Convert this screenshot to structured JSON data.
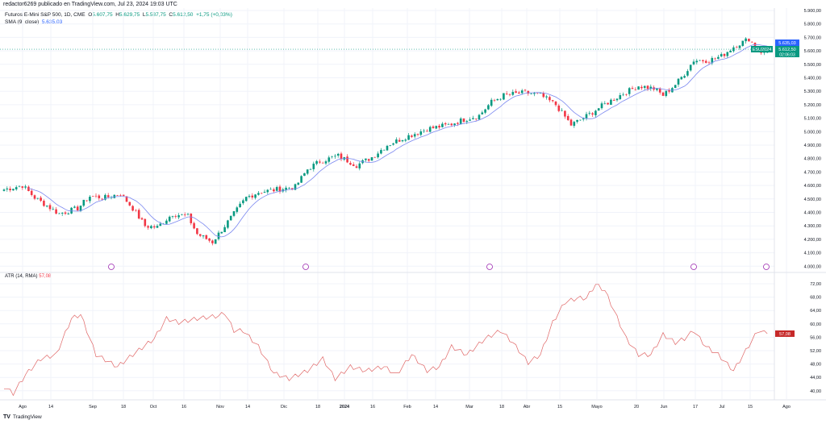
{
  "credit": "redactor6269 publicado en TradingView.com, Jul 23, 2024 19:03 UTC",
  "legend": {
    "symbol": "Futuros E-Mini S&P 500, 1D, CME",
    "o_label": "O",
    "o": "5.607,75",
    "h_label": "H",
    "h": "5.629,75",
    "l_label": "L",
    "l": "5.587,75",
    "c_label": "C",
    "c": "5.612,50",
    "change": "+1,75 (+0,03%)",
    "sma_label": "SMA (9, close)",
    "sma_value": "5.635,03"
  },
  "atr": {
    "label": "ATR (14, RMA)",
    "value": "57,08"
  },
  "price_axis": {
    "ticks": [
      "5.900,00",
      "5.800,00",
      "5.700,00",
      "5.600,00",
      "5.500,00",
      "5.400,00",
      "5.300,00",
      "5.200,00",
      "5.100,00",
      "5.000,00",
      "4.900,00",
      "4.800,00",
      "4.700,00",
      "4.600,00",
      "4.500,00",
      "4.400,00",
      "4.300,00",
      "4.200,00",
      "4.100,00",
      "4.000,00"
    ],
    "sma_tag": "5.635,03",
    "price_tag": "5.612,50",
    "countdown": "02:06:03",
    "symbol_tag": "ESU2024"
  },
  "atr_axis": {
    "ticks": [
      "72,00",
      "68,00",
      "64,00",
      "60,00",
      "56,00",
      "52,00",
      "48,00",
      "44,00",
      "40,00"
    ],
    "tag": "57,08"
  },
  "time_axis": [
    "Ago",
    "14",
    "Sep",
    "18",
    "Oct",
    "16",
    "Nov",
    "14",
    "Dic",
    "18",
    "2024",
    "16",
    "Feb",
    "14",
    "Mar",
    "18",
    "Abr",
    "15",
    "Mayo",
    "20",
    "Jun",
    "17",
    "Jul",
    "15",
    "Ago"
  ],
  "footer": {
    "logo": "TV",
    "brand": "TradingView"
  },
  "colors": {
    "up": "#089981",
    "down": "#f23645",
    "sma": "#7b88f0",
    "atr": "#e06666",
    "event": "#9c27b0"
  },
  "chart_data": [
    {
      "type": "candlestick",
      "ylim": [
        4000,
        5900
      ],
      "sma_period": 9,
      "close_waypoints_bar_price": [
        [
          0,
          4570
        ],
        [
          6,
          4600
        ],
        [
          10,
          4510
        ],
        [
          18,
          4390
        ],
        [
          24,
          4430
        ],
        [
          28,
          4520
        ],
        [
          33,
          4510
        ],
        [
          38,
          4540
        ],
        [
          42,
          4430
        ],
        [
          46,
          4300
        ],
        [
          50,
          4290
        ],
        [
          55,
          4390
        ],
        [
          60,
          4370
        ],
        [
          63,
          4240
        ],
        [
          68,
          4180
        ],
        [
          71,
          4270
        ],
        [
          75,
          4390
        ],
        [
          79,
          4510
        ],
        [
          83,
          4550
        ],
        [
          89,
          4570
        ],
        [
          95,
          4590
        ],
        [
          99,
          4720
        ],
        [
          103,
          4780
        ],
        [
          109,
          4820
        ],
        [
          115,
          4750
        ],
        [
          120,
          4810
        ],
        [
          125,
          4900
        ],
        [
          131,
          4960
        ],
        [
          138,
          5020
        ],
        [
          145,
          5050
        ],
        [
          150,
          5090
        ],
        [
          155,
          5120
        ],
        [
          159,
          5220
        ],
        [
          163,
          5270
        ],
        [
          170,
          5290
        ],
        [
          175,
          5270
        ],
        [
          180,
          5200
        ],
        [
          185,
          5050
        ],
        [
          189,
          5100
        ],
        [
          195,
          5190
        ],
        [
          201,
          5270
        ],
        [
          207,
          5340
        ],
        [
          212,
          5320
        ],
        [
          215,
          5270
        ],
        [
          219,
          5350
        ],
        [
          222,
          5430
        ],
        [
          225,
          5530
        ],
        [
          230,
          5530
        ],
        [
          234,
          5560
        ],
        [
          238,
          5630
        ],
        [
          243,
          5690
        ],
        [
          246,
          5610
        ],
        [
          248,
          5580
        ],
        [
          249,
          5612
        ]
      ]
    },
    {
      "type": "line",
      "name": "ATR (14, RMA)",
      "ylim": [
        38,
        74
      ],
      "waypoints_bar_value": [
        [
          0,
          41.2
        ],
        [
          3,
          39.2
        ],
        [
          7,
          44.8
        ],
        [
          12,
          49.6
        ],
        [
          17,
          50.8
        ],
        [
          22,
          61.6
        ],
        [
          25,
          62.8
        ],
        [
          30,
          50.8
        ],
        [
          37,
          47.2
        ],
        [
          42,
          50.8
        ],
        [
          49,
          55.6
        ],
        [
          53,
          61.6
        ],
        [
          57,
          60.4
        ],
        [
          63,
          61.6
        ],
        [
          70,
          62.4
        ],
        [
          72,
          63.3
        ],
        [
          75,
          58
        ],
        [
          78,
          58
        ],
        [
          83,
          53.2
        ],
        [
          88,
          45.3
        ],
        [
          93,
          43.6
        ],
        [
          99,
          46
        ],
        [
          104,
          49.6
        ],
        [
          108,
          43.6
        ],
        [
          113,
          47.2
        ],
        [
          118,
          46
        ],
        [
          124,
          47.2
        ],
        [
          128,
          44.8
        ],
        [
          133,
          50.8
        ],
        [
          138,
          46
        ],
        [
          142,
          47.2
        ],
        [
          146,
          53.2
        ],
        [
          151,
          50.8
        ],
        [
          157,
          55.6
        ],
        [
          162,
          58
        ],
        [
          166,
          54.4
        ],
        [
          171,
          48.4
        ],
        [
          175,
          50.8
        ],
        [
          179,
          60.4
        ],
        [
          183,
          66.5
        ],
        [
          187,
          67.7
        ],
        [
          190,
          67.7
        ],
        [
          193,
          71.8
        ],
        [
          196,
          70
        ],
        [
          199,
          64
        ],
        [
          203,
          55.6
        ],
        [
          207,
          50.8
        ],
        [
          211,
          50.8
        ],
        [
          215,
          56.8
        ],
        [
          219,
          54.4
        ],
        [
          222,
          55.6
        ],
        [
          225,
          58
        ],
        [
          229,
          53.2
        ],
        [
          233,
          50.8
        ],
        [
          238,
          46
        ],
        [
          242,
          52
        ],
        [
          246,
          58
        ],
        [
          249,
          57.08
        ]
      ]
    }
  ]
}
